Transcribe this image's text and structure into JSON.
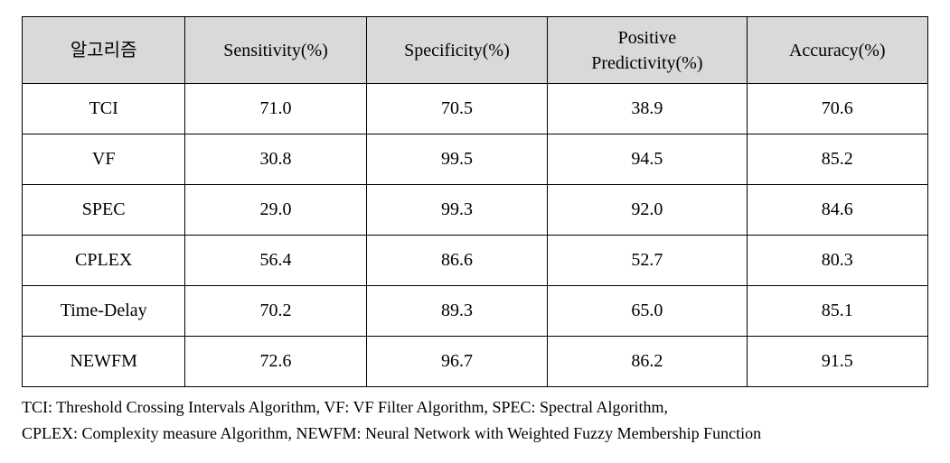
{
  "table": {
    "columns": [
      "알고리즘",
      "Sensitivity(%)",
      "Specificity(%)",
      "Positive\nPredictivity(%)",
      "Accuracy(%)"
    ],
    "rows": [
      [
        "TCI",
        "71.0",
        "70.5",
        "38.9",
        "70.6"
      ],
      [
        "VF",
        "30.8",
        "99.5",
        "94.5",
        "85.2"
      ],
      [
        "SPEC",
        "29.0",
        "99.3",
        "92.0",
        "84.6"
      ],
      [
        "CPLEX",
        "56.4",
        "86.6",
        "52.7",
        "80.3"
      ],
      [
        "Time-Delay",
        "70.2",
        "89.3",
        "65.0",
        "85.1"
      ],
      [
        "NEWFM",
        "72.6",
        "96.7",
        "86.2",
        "91.5"
      ]
    ],
    "header_bg": "#d9d9d9",
    "border_color": "#000000",
    "font_size_cell": 20,
    "font_size_footnote": 18,
    "col_widths_pct": [
      18,
      20,
      20,
      22,
      20
    ]
  },
  "footnote": {
    "line1": "TCI: Threshold Crossing Intervals Algorithm, VF: VF Filter Algorithm, SPEC: Spectral Algorithm,",
    "line2": "CPLEX: Complexity measure Algorithm, NEWFM: Neural Network with Weighted Fuzzy Membership Function"
  }
}
